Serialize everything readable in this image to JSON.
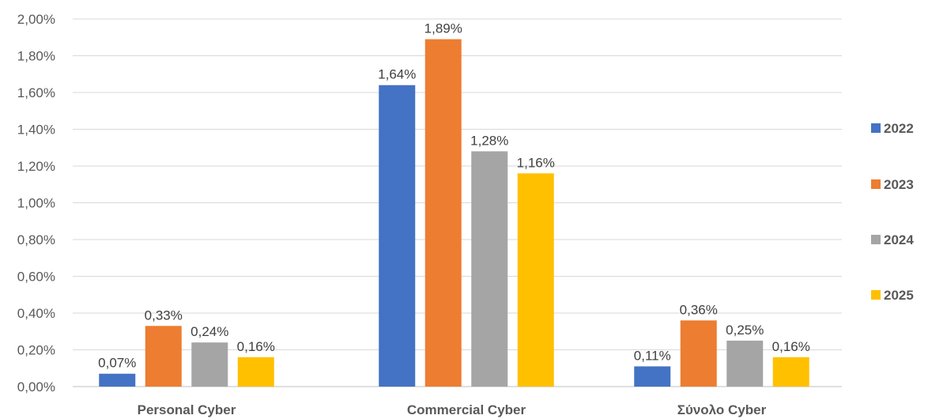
{
  "chart_data": {
    "type": "bar",
    "categories": [
      "Personal Cyber",
      "Commercial Cyber",
      "Σύνολο Cyber"
    ],
    "series": [
      {
        "name": "2022",
        "color": "#4472c4",
        "values": [
          0.07,
          1.64,
          0.11
        ],
        "labels": [
          "0,07%",
          "1,64%",
          "0,11%"
        ]
      },
      {
        "name": "2023",
        "color": "#ed7d31",
        "values": [
          0.33,
          1.89,
          0.36
        ],
        "labels": [
          "0,33%",
          "1,89%",
          "0,36%"
        ]
      },
      {
        "name": "2024",
        "color": "#a5a5a5",
        "values": [
          0.24,
          1.28,
          0.25
        ],
        "labels": [
          "0,24%",
          "1,28%",
          "0,25%"
        ]
      },
      {
        "name": "2025",
        "color": "#ffc000",
        "values": [
          0.16,
          1.16,
          0.16
        ],
        "labels": [
          "0,16%",
          "1,16%",
          "0,16%"
        ]
      }
    ],
    "ylim": [
      0,
      2
    ],
    "yticks": [
      0,
      0.2,
      0.4,
      0.6,
      0.8,
      1.0,
      1.2,
      1.4,
      1.6,
      1.8,
      2.0
    ],
    "ytick_labels": [
      "0,00%",
      "0,20%",
      "0,40%",
      "0,60%",
      "0,80%",
      "1,00%",
      "1,20%",
      "1,40%",
      "1,60%",
      "1,80%",
      "2,00%"
    ],
    "title": "",
    "xlabel": "",
    "ylabel": "",
    "grid": true,
    "legend_position": "right"
  }
}
